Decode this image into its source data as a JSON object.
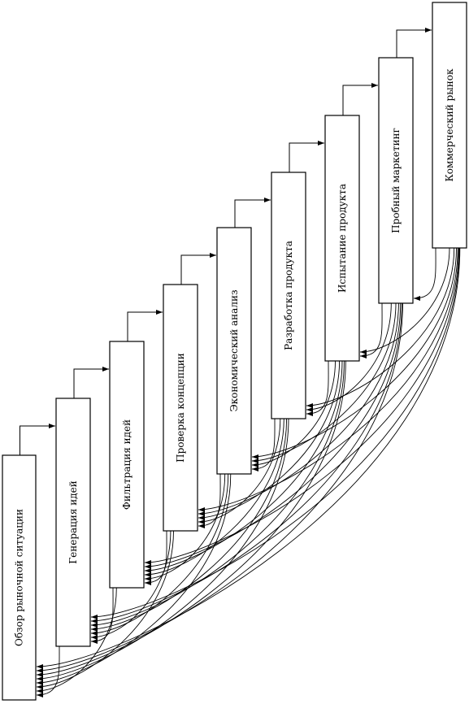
{
  "stages": [
    {
      "id": "market-review",
      "label": "Обзор рыночной ситуации"
    },
    {
      "id": "idea-generation",
      "label": "Генерация идей"
    },
    {
      "id": "idea-filtering",
      "label": "Фильтрация идей"
    },
    {
      "id": "concept-testing",
      "label": "Проверка концепции"
    },
    {
      "id": "economic-analysis",
      "label": "Экономический анализ"
    },
    {
      "id": "product-development",
      "label": "Разработка продукта"
    },
    {
      "id": "product-testing",
      "label": "Испытание продукта"
    },
    {
      "id": "test-marketing",
      "label": "Пробный маркетинг"
    },
    {
      "id": "commercial-market",
      "label": "Коммерческий рынок"
    }
  ],
  "colors": {
    "stroke": "#000000",
    "box_fill": "#ffffff",
    "background": "#ffffff"
  },
  "arrow_style": "filled-triangle"
}
